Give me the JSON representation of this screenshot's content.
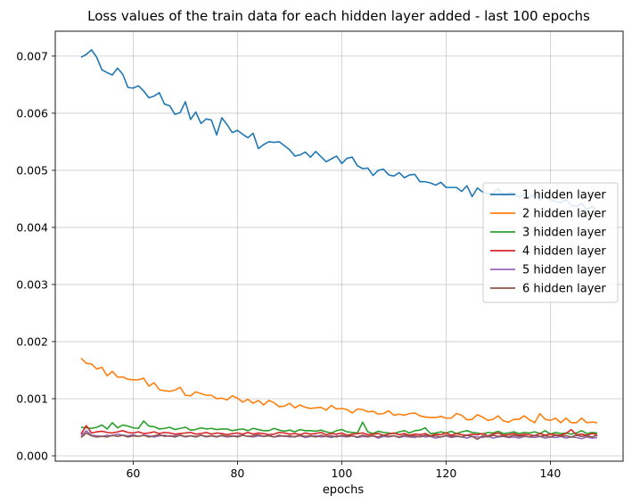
{
  "chart_data": {
    "type": "line",
    "title": "Loss values of the train data for each hidden layer added - last 100 epochs",
    "xlabel": "epochs",
    "ylabel": "",
    "xlim": [
      45.05,
      153.95
    ],
    "ylim": [
      -9.4e-05,
      0.007436
    ],
    "x_ticks": [
      60,
      80,
      100,
      120,
      140
    ],
    "y_ticks": [
      0.0,
      0.001,
      0.002,
      0.003,
      0.004,
      0.005,
      0.006,
      0.007
    ],
    "x_tick_labels": [
      "60",
      "80",
      "100",
      "120",
      "140"
    ],
    "y_tick_labels": [
      "0.000",
      "0.001",
      "0.002",
      "0.003",
      "0.004",
      "0.005",
      "0.006",
      "0.007"
    ],
    "grid": true,
    "legend_position": "center-right",
    "x_start": 50,
    "series": [
      {
        "name": "1 hidden layer",
        "color": "#1f77b4",
        "values": [
          0.00698,
          0.00703,
          0.00711,
          0.00698,
          0.00676,
          0.00671,
          0.00667,
          0.00679,
          0.00668,
          0.00645,
          0.00644,
          0.00648,
          0.00639,
          0.00627,
          0.0063,
          0.00636,
          0.00616,
          0.00613,
          0.00598,
          0.00601,
          0.0062,
          0.00589,
          0.00602,
          0.00582,
          0.0059,
          0.00588,
          0.00562,
          0.00592,
          0.0058,
          0.00566,
          0.0057,
          0.00563,
          0.00557,
          0.00565,
          0.00538,
          0.00545,
          0.0055,
          0.00549,
          0.0055,
          0.00543,
          0.00536,
          0.00525,
          0.00527,
          0.00532,
          0.00523,
          0.00533,
          0.00524,
          0.00515,
          0.0052,
          0.00525,
          0.00512,
          0.00521,
          0.00523,
          0.00508,
          0.00503,
          0.00504,
          0.00491,
          0.005,
          0.00502,
          0.00492,
          0.0049,
          0.00496,
          0.00487,
          0.00492,
          0.00493,
          0.0048,
          0.0048,
          0.00478,
          0.00474,
          0.00479,
          0.0047,
          0.0047,
          0.0047,
          0.00463,
          0.00473,
          0.00454,
          0.00469,
          0.00462,
          0.00459,
          0.0046,
          0.00468,
          0.00455,
          0.00461,
          0.00461,
          0.00453,
          0.00458,
          0.00453,
          0.00458,
          0.00448,
          0.00454,
          0.00449,
          0.00445,
          0.00443,
          0.00449,
          0.00438,
          0.00437,
          0.00442,
          0.00431,
          0.00437,
          0.00427
        ]
      },
      {
        "name": "2 hidden layer",
        "color": "#ff7f0e",
        "values": [
          0.00171,
          0.00162,
          0.00161,
          0.00152,
          0.00155,
          0.0014,
          0.00148,
          0.00138,
          0.00138,
          0.00134,
          0.00133,
          0.00133,
          0.00136,
          0.00122,
          0.00128,
          0.00116,
          0.00114,
          0.00113,
          0.00115,
          0.0012,
          0.00106,
          0.00105,
          0.00112,
          0.00109,
          0.00106,
          0.00106,
          0.001,
          0.00101,
          0.00098,
          0.00105,
          0.00101,
          0.00094,
          0.00099,
          0.00092,
          0.00097,
          0.00089,
          0.00097,
          0.00093,
          0.00086,
          0.00087,
          0.00092,
          0.00084,
          0.00089,
          0.00085,
          0.00083,
          0.00084,
          0.00085,
          0.0008,
          0.00088,
          0.00082,
          0.00083,
          0.00081,
          0.00075,
          0.00082,
          0.00081,
          0.00077,
          0.00078,
          0.00073,
          0.00074,
          0.00079,
          0.00071,
          0.00073,
          0.00071,
          0.00074,
          0.00075,
          0.0007,
          0.00068,
          0.00067,
          0.00067,
          0.00069,
          0.00066,
          0.00066,
          0.00074,
          0.00071,
          0.00063,
          0.00064,
          0.00072,
          0.00068,
          0.00062,
          0.00064,
          0.0007,
          0.00061,
          0.00059,
          0.00064,
          0.00064,
          0.0007,
          0.00063,
          0.00058,
          0.00074,
          0.00064,
          0.00062,
          0.00066,
          0.00058,
          0.00066,
          0.00058,
          0.00058,
          0.00066,
          0.00058,
          0.00059,
          0.00058
        ]
      },
      {
        "name": "3 hidden layer",
        "color": "#2ca02c",
        "values": [
          0.0005,
          0.00049,
          0.00048,
          0.0005,
          0.00054,
          0.00047,
          0.00058,
          0.00049,
          0.00054,
          0.00052,
          0.00049,
          0.00048,
          0.00061,
          0.00052,
          0.00051,
          0.00047,
          0.00048,
          0.0005,
          0.00046,
          0.00048,
          0.0005,
          0.00045,
          0.00046,
          0.00049,
          0.00047,
          0.00048,
          0.00046,
          0.00047,
          0.00047,
          0.00044,
          0.00046,
          0.00047,
          0.00044,
          0.00048,
          0.00046,
          0.00044,
          0.00044,
          0.00048,
          0.00045,
          0.00043,
          0.00045,
          0.00042,
          0.00046,
          0.00044,
          0.00044,
          0.00043,
          0.00045,
          0.00042,
          0.0004,
          0.00044,
          0.00046,
          0.00042,
          0.00041,
          0.0004,
          0.00059,
          0.00042,
          0.00039,
          0.00043,
          0.00041,
          0.0004,
          0.00039,
          0.00042,
          0.00044,
          0.0004,
          0.00044,
          0.00045,
          0.00049,
          0.00039,
          0.0004,
          0.00042,
          0.0004,
          0.00043,
          0.00039,
          0.00042,
          0.00044,
          0.00041,
          0.0004,
          0.00038,
          0.00041,
          0.0004,
          0.00043,
          0.00039,
          0.0004,
          0.00042,
          0.00039,
          0.00041,
          0.0004,
          0.00042,
          0.00039,
          0.00044,
          0.00038,
          0.00041,
          0.00039,
          0.0004,
          0.00038,
          0.0004,
          0.00044,
          0.00039,
          0.00041,
          0.0004
        ]
      },
      {
        "name": "4 hidden layer",
        "color": "#d62728",
        "values": [
          0.00038,
          0.00053,
          0.0004,
          0.00042,
          0.00043,
          0.00041,
          0.0004,
          0.00042,
          0.00044,
          0.00041,
          0.0004,
          0.00042,
          0.00039,
          0.0004,
          0.00042,
          0.00039,
          0.00041,
          0.0004,
          0.00038,
          0.00039,
          0.0004,
          0.00041,
          0.00038,
          0.00039,
          0.00041,
          0.00038,
          0.0004,
          0.00039,
          0.00037,
          0.00039,
          0.0004,
          0.00038,
          0.00041,
          0.00038,
          0.0004,
          0.00039,
          0.00037,
          0.00038,
          0.00041,
          0.0004,
          0.00038,
          0.00039,
          0.00037,
          0.0004,
          0.00038,
          0.00039,
          0.00041,
          0.00037,
          0.00039,
          0.00038,
          0.0004,
          0.00036,
          0.00038,
          0.00039,
          0.0004,
          0.00037,
          0.00038,
          0.00039,
          0.00036,
          0.00038,
          0.0004,
          0.00037,
          0.00039,
          0.00036,
          0.00038,
          0.00037,
          0.00039,
          0.00035,
          0.00038,
          0.00037,
          0.0004,
          0.00036,
          0.00039,
          0.00037,
          0.00036,
          0.00038,
          0.00037,
          0.00039,
          0.00035,
          0.00038,
          0.0004,
          0.00036,
          0.00037,
          0.00039,
          0.00036,
          0.00038,
          0.00037,
          0.00035,
          0.00039,
          0.00036,
          0.00038,
          0.00037,
          0.00036,
          0.00039,
          0.00046,
          0.00037,
          0.00038,
          0.00036,
          0.00039,
          0.00037
        ]
      },
      {
        "name": "5 hidden layer",
        "color": "#9467bd",
        "values": [
          0.00035,
          0.00044,
          0.00036,
          0.00035,
          0.00034,
          0.00036,
          0.00035,
          0.00038,
          0.00036,
          0.00035,
          0.00037,
          0.00034,
          0.00036,
          0.00035,
          0.00033,
          0.00035,
          0.00036,
          0.00034,
          0.00035,
          0.00036,
          0.00033,
          0.00035,
          0.00034,
          0.00036,
          0.00033,
          0.00035,
          0.00034,
          0.00035,
          0.00033,
          0.00034,
          0.00035,
          0.00036,
          0.00034,
          0.00033,
          0.00035,
          0.00034,
          0.00036,
          0.00033,
          0.00034,
          0.00035,
          0.00033,
          0.00034,
          0.00035,
          0.00032,
          0.00034,
          0.00035,
          0.00033,
          0.00034,
          0.00032,
          0.00035,
          0.00034,
          0.00033,
          0.00035,
          0.00032,
          0.00034,
          0.00033,
          0.00035,
          0.00031,
          0.00034,
          0.00033,
          0.00035,
          0.00032,
          0.00034,
          0.00033,
          0.00032,
          0.00035,
          0.00033,
          0.00034,
          0.00031,
          0.00033,
          0.00035,
          0.00032,
          0.00034,
          0.00033,
          0.00031,
          0.00034,
          0.00033,
          0.00032,
          0.00035,
          0.00031,
          0.00033,
          0.00034,
          0.00032,
          0.00033,
          0.00031,
          0.00034,
          0.00033,
          0.00032,
          0.00034,
          0.00031,
          0.00033,
          0.00032,
          0.00034,
          0.00031,
          0.00033,
          0.00032,
          0.0003,
          0.00033,
          0.00031,
          0.00032
        ]
      },
      {
        "name": "6 hidden layer",
        "color": "#8c564b",
        "values": [
          0.00032,
          0.0004,
          0.00035,
          0.00033,
          0.00034,
          0.00033,
          0.00036,
          0.00034,
          0.00036,
          0.00033,
          0.00035,
          0.00034,
          0.00036,
          0.00033,
          0.00035,
          0.00037,
          0.00034,
          0.00035,
          0.00033,
          0.00036,
          0.00034,
          0.00035,
          0.00033,
          0.00036,
          0.00034,
          0.00035,
          0.00033,
          0.00036,
          0.00034,
          0.00035,
          0.00033,
          0.00036,
          0.00034,
          0.00035,
          0.00037,
          0.00034,
          0.00035,
          0.00033,
          0.00036,
          0.00034,
          0.00035,
          0.00033,
          0.00036,
          0.00034,
          0.00035,
          0.00033,
          0.00036,
          0.00034,
          0.00035,
          0.00033,
          0.00036,
          0.00034,
          0.00035,
          0.00033,
          0.00036,
          0.00034,
          0.00035,
          0.00033,
          0.00036,
          0.00034,
          0.00035,
          0.00033,
          0.00036,
          0.00034,
          0.00035,
          0.00033,
          0.00036,
          0.00034,
          0.00035,
          0.00033,
          0.00036,
          0.00034,
          0.00035,
          0.00033,
          0.00036,
          0.00034,
          0.00029,
          0.00035,
          0.00033,
          0.00036,
          0.00034,
          0.00035,
          0.00033,
          0.00036,
          0.00034,
          0.00035,
          0.00033,
          0.00036,
          0.00034,
          0.00035,
          0.00033,
          0.00036,
          0.00034,
          0.00035,
          0.00033,
          0.00036,
          0.00034,
          0.00035,
          0.00033,
          0.00036
        ]
      }
    ]
  }
}
